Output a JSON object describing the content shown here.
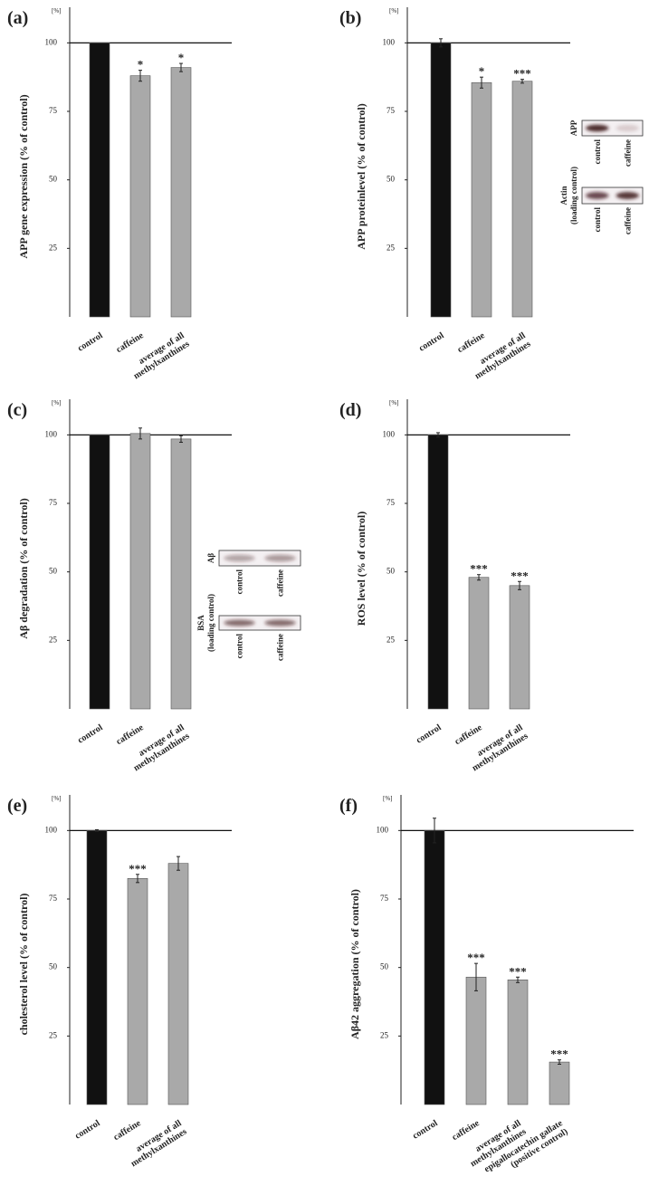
{
  "chart_data": [
    {
      "type": "bar",
      "panel": "(a)",
      "unit": "[%]",
      "ylabel": "APP gene expression (% of control)",
      "categories": [
        [
          "control"
        ],
        [
          "caffeine"
        ],
        [
          "average of all",
          "methylxanthines"
        ]
      ],
      "values": [
        100,
        88,
        91
      ],
      "errors": [
        0,
        2,
        1.5
      ],
      "annotations": [
        null,
        "*",
        "*"
      ],
      "colors": [
        "#111111",
        "#a9a9a9",
        "#a9a9a9"
      ],
      "ylim": [
        0,
        113
      ],
      "yticks": [
        25,
        50,
        75,
        100
      ],
      "reference_line": 100
    },
    {
      "type": "bar",
      "panel": "(b)",
      "unit": "[%]",
      "ylabel": "APP proteinlevel (% of control)",
      "categories": [
        [
          "control"
        ],
        [
          "caffeine"
        ],
        [
          "average of all",
          "methylxanthines"
        ]
      ],
      "values": [
        100,
        85.5,
        86
      ],
      "errors": [
        1.5,
        2,
        0.7
      ],
      "annotations": [
        null,
        "*",
        "***"
      ],
      "colors": [
        "#111111",
        "#a9a9a9",
        "#a9a9a9"
      ],
      "ylim": [
        0,
        113
      ],
      "yticks": [
        25,
        50,
        75,
        100
      ],
      "reference_line": 100,
      "insets": [
        {
          "label": [
            "APP"
          ],
          "lanes": [
            "control",
            "caffeine"
          ]
        },
        {
          "label": [
            "Actin",
            "(loading control)"
          ],
          "lanes": [
            "control",
            "caffeine"
          ]
        }
      ]
    },
    {
      "type": "bar",
      "panel": "(c)",
      "unit": "[%]",
      "ylabel": "Aβ degradation (% of control)",
      "categories": [
        [
          "control"
        ],
        [
          "caffeine"
        ],
        [
          "average of all",
          "methylxanthines"
        ]
      ],
      "values": [
        100,
        100.5,
        98.5
      ],
      "errors": [
        0,
        2,
        1.2
      ],
      "annotations": [
        null,
        null,
        null
      ],
      "colors": [
        "#111111",
        "#a9a9a9",
        "#a9a9a9"
      ],
      "ylim": [
        0,
        113
      ],
      "yticks": [
        25,
        50,
        75,
        100
      ],
      "reference_line": 100,
      "insets": [
        {
          "label": [
            "Aβ"
          ],
          "lanes": [
            "control",
            "caffeine"
          ]
        },
        {
          "label": [
            "BSA",
            "(loading control)"
          ],
          "lanes": [
            "control",
            "caffeine"
          ]
        }
      ]
    },
    {
      "type": "bar",
      "panel": "(d)",
      "unit": "[%]",
      "ylabel": "ROS level (% of control)",
      "categories": [
        [
          "control"
        ],
        [
          "caffeine"
        ],
        [
          "average of all",
          "methylxanthines"
        ]
      ],
      "values": [
        100,
        48,
        45
      ],
      "errors": [
        0.8,
        1,
        1.5
      ],
      "annotations": [
        null,
        "***",
        "***"
      ],
      "colors": [
        "#111111",
        "#a9a9a9",
        "#a9a9a9"
      ],
      "ylim": [
        0,
        113
      ],
      "yticks": [
        25,
        50,
        75,
        100
      ],
      "reference_line": 100
    },
    {
      "type": "bar",
      "panel": "(e)",
      "unit": "[%]",
      "ylabel": "cholesterol level (% of control)",
      "categories": [
        [
          "control"
        ],
        [
          "caffeine"
        ],
        [
          "average of all",
          "methylxanthines"
        ]
      ],
      "values": [
        100,
        82.5,
        88
      ],
      "errors": [
        0.3,
        1.5,
        2.5
      ],
      "annotations": [
        null,
        "***",
        null
      ],
      "colors": [
        "#111111",
        "#a9a9a9",
        "#a9a9a9"
      ],
      "ylim": [
        0,
        113
      ],
      "yticks": [
        25,
        50,
        75,
        100
      ],
      "reference_line": 100
    },
    {
      "type": "bar",
      "panel": "(f)",
      "unit": "[%]",
      "ylabel": "Aβ42 aggregation (% of control)",
      "categories": [
        [
          "control"
        ],
        [
          "caffeine"
        ],
        [
          "average of all",
          "methylxanthines"
        ],
        [
          "epigallocatechin gallate",
          "(positive control)"
        ]
      ],
      "values": [
        100,
        46.5,
        45.5,
        15.5
      ],
      "errors": [
        4.5,
        5,
        1,
        0.8
      ],
      "annotations": [
        null,
        "***",
        "***",
        "***"
      ],
      "colors": [
        "#111111",
        "#a9a9a9",
        "#a9a9a9",
        "#a9a9a9"
      ],
      "ylim": [
        0,
        113
      ],
      "yticks": [
        25,
        50,
        75,
        100
      ],
      "reference_line": 100
    }
  ]
}
